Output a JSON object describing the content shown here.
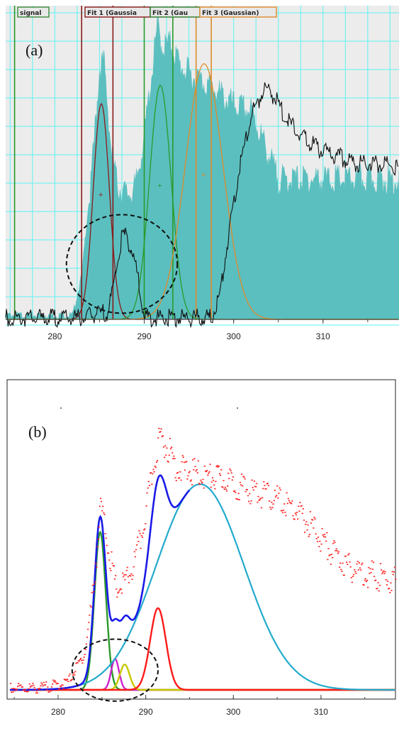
{
  "chart_data": [
    {
      "type": "area",
      "panel_label": "(a)",
      "xlim": [
        274.5,
        318.5
      ],
      "xticks": [
        280,
        290,
        300,
        310
      ],
      "grid": true,
      "colors": {
        "background": "#ececec",
        "grid": "#5ef2f2",
        "spectrum": "#5bbfbf",
        "overlay": "#111111"
      },
      "region_labels": [
        {
          "name": "signal",
          "text": "signal",
          "color": "#3a8a3a"
        },
        {
          "name": "fit1",
          "text": "Fit 1 (Gaussia",
          "color": "#8b1a1a"
        },
        {
          "name": "fit2",
          "text": "Fit 2 (Gau",
          "color": "#2a7a2a"
        },
        {
          "name": "fit3",
          "text": "Fit 3 (Gaussian)",
          "color": "#e08a2a"
        }
      ],
      "region_lines": [
        {
          "x": 275.5,
          "color": "#2a9a2a"
        },
        {
          "x": 283.0,
          "color": "#8b1a1a"
        },
        {
          "x": 286.5,
          "color": "#8b1a1a"
        },
        {
          "x": 290.0,
          "color": "#2a9a2a"
        },
        {
          "x": 293.2,
          "color": "#2a9a2a"
        },
        {
          "x": 295.8,
          "color": "#e08a2a"
        },
        {
          "x": 297.5,
          "color": "#e08a2a"
        }
      ],
      "spectrum": {
        "x": [
          274.5,
          282.0,
          283.0,
          284.0,
          285.0,
          285.5,
          286.3,
          287.0,
          288.0,
          289.0,
          290.0,
          291.0,
          291.5,
          292.0,
          293.0,
          294.0,
          295.5,
          296.5,
          297.5,
          300.0,
          302.0,
          305.0,
          318.5
        ],
        "y": [
          2,
          2,
          15,
          45,
          84,
          86,
          58,
          46,
          43,
          45,
          62,
          86,
          98,
          91,
          92,
          85,
          81,
          80,
          78,
          72,
          70,
          48,
          48
        ]
      },
      "fits": [
        {
          "name": "Fit 1",
          "center": 285.2,
          "sigma": 0.9,
          "amplitude": 70,
          "color": "#8b1a1a"
        },
        {
          "name": "Fit 2",
          "center": 291.8,
          "sigma": 1.2,
          "amplitude": 76,
          "color": "#2a9a2a"
        },
        {
          "name": "Fit 3",
          "center": 296.7,
          "sigma": 2.1,
          "amplitude": 83,
          "color": "#e08a2a"
        }
      ],
      "overlay_curve": {
        "x": [
          274.5,
          283.0,
          284.5,
          286.0,
          287.5,
          288.0,
          289.0,
          290.0,
          297.5,
          298.5,
          299.5,
          300.5,
          302.0,
          303.5,
          304.5,
          306.0,
          308.0,
          310.0,
          312.0,
          314.0,
          316.0,
          318.5
        ],
        "y": [
          2,
          2,
          3,
          4,
          28,
          29,
          20,
          2,
          2,
          10,
          30,
          48,
          68,
          77,
          74,
          66,
          60,
          56,
          54,
          52,
          52,
          51
        ]
      },
      "circle": {
        "center_x": 287.5,
        "center_y": 18,
        "radius_x": 6.2,
        "radius_y": 16
      }
    },
    {
      "type": "line",
      "panel_label": "(b)",
      "xlim": [
        274.5,
        318.5
      ],
      "xticks": [
        280,
        290,
        300,
        310
      ],
      "grid": false,
      "colors": {
        "data": "#ff2020",
        "envelope": "#1a1ae6"
      },
      "data_points": {
        "x": [
          274.5,
          278.0,
          281.0,
          283.0,
          284.0,
          284.8,
          285.5,
          286.5,
          287.5,
          288.5,
          289.5,
          290.5,
          291.0,
          291.5,
          292.5,
          293.5,
          295.0,
          297.0,
          299.0,
          301.0,
          303.0,
          305.0,
          307.0,
          309.0,
          311.0,
          313.0,
          315.0,
          317.0,
          318.5
        ],
        "y": [
          1.5,
          1.6,
          3.5,
          14,
          40,
          68,
          56,
          38,
          40,
          46,
          58,
          76,
          85,
          92,
          88,
          81,
          80,
          78,
          77,
          74,
          72,
          70,
          66,
          60,
          52,
          46,
          44,
          42,
          41
        ]
      },
      "components": [
        {
          "name": "peak-1",
          "center": 284.8,
          "sigma": 0.65,
          "amplitude": 56,
          "color": "#2a9a2a"
        },
        {
          "name": "peak-2",
          "center": 286.5,
          "sigma": 0.45,
          "amplitude": 11,
          "color": "#cc22cc"
        },
        {
          "name": "peak-3",
          "center": 287.6,
          "sigma": 0.55,
          "amplitude": 9,
          "color": "#c8c800"
        },
        {
          "name": "peak-4",
          "center": 291.4,
          "sigma": 0.9,
          "amplitude": 29,
          "color": "#ff1a1a"
        },
        {
          "name": "peak-5",
          "center": 296.2,
          "sigma": 5.0,
          "amplitude": 73,
          "color": "#22aacc"
        }
      ],
      "circle": {
        "center_x": 286.5,
        "center_y": 7,
        "radius_x": 4.9,
        "radius_y": 11
      }
    }
  ]
}
